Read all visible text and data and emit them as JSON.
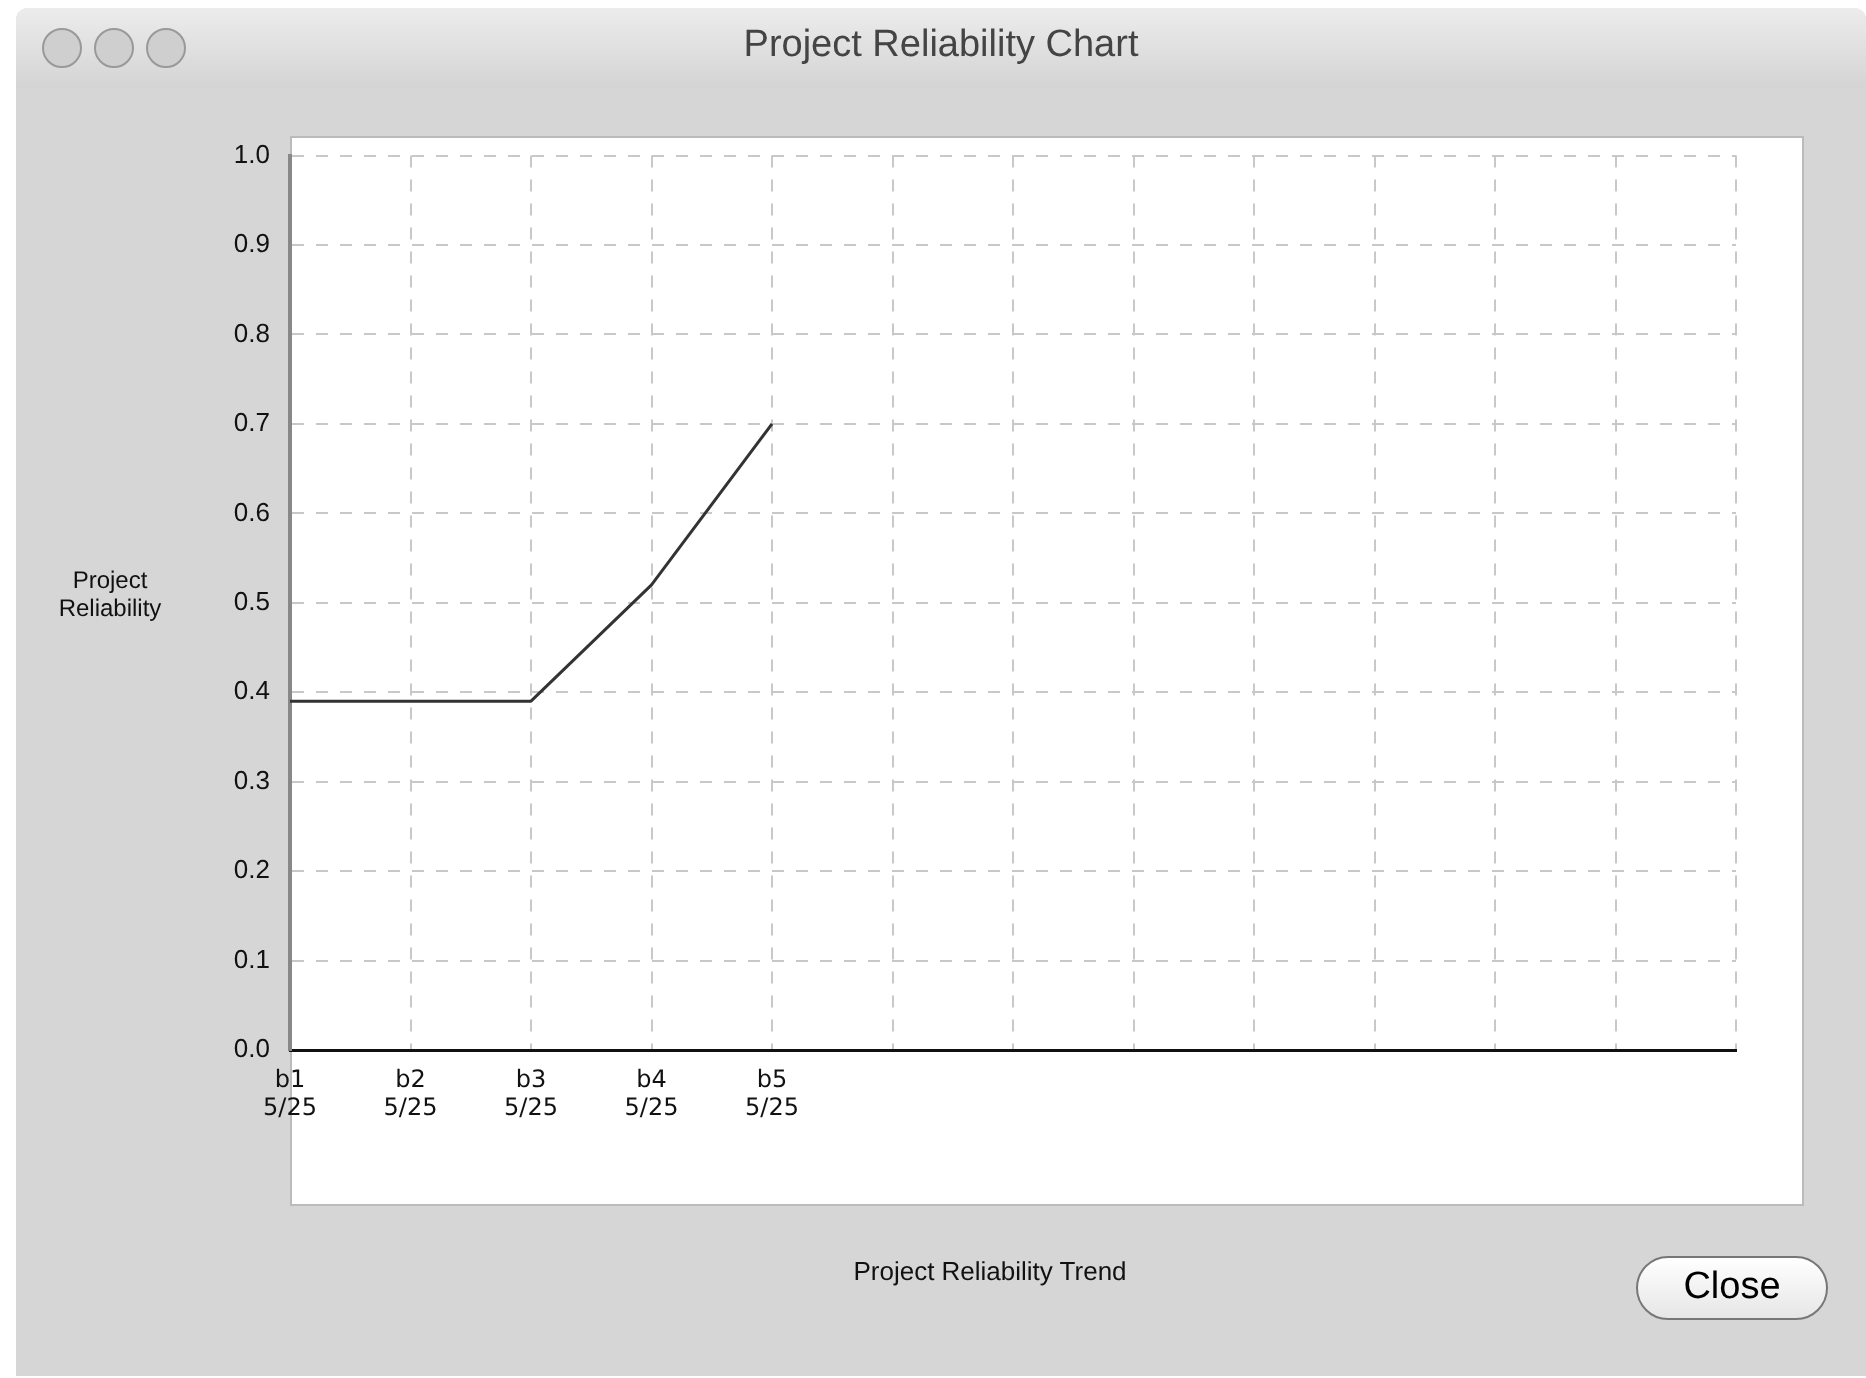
{
  "chart_data": {
    "type": "line",
    "title": "Project Reliability Chart",
    "ylabel": "Project Reliability",
    "categories": [
      "b1\n5/25",
      "b2\n5/25",
      "b3\n5/25",
      "b4\n5/25",
      "b5\n5/25",
      null,
      null,
      null,
      null,
      null,
      null,
      null,
      null
    ],
    "values": [
      0.39,
      0.39,
      0.39,
      0.52,
      0.7,
      null,
      null,
      null,
      null,
      null,
      null,
      null,
      null
    ],
    "color": "#333333",
    "marker": "none",
    "line_style": "solid",
    "ylim": [
      0,
      1
    ],
    "yticks": [
      {
        "value": 0,
        "label": "0.0"
      },
      {
        "value": 0.1,
        "label": "0.1"
      },
      {
        "value": 0.2,
        "label": "0.2"
      },
      {
        "value": 0.3,
        "label": "0.3"
      },
      {
        "value": 0.4,
        "label": "0.4"
      },
      {
        "value": 0.5,
        "label": "0.5"
      },
      {
        "value": 0.6,
        "label": "0.6"
      },
      {
        "value": 0.7,
        "label": "0.7"
      },
      {
        "value": 0.8,
        "label": "0.8"
      },
      {
        "value": 0.9,
        "label": "0.9"
      },
      {
        "value": 1,
        "label": "1.0"
      }
    ],
    "grid": true,
    "legend": false,
    "annotations": [
      "Project Reliability Trend",
      "Close"
    ]
  }
}
